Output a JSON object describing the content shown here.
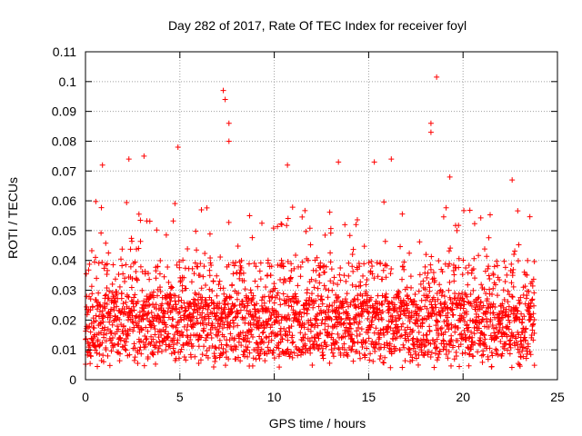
{
  "chart_data": {
    "type": "scatter",
    "title": "Day 282 of 2017, Rate Of TEC Index for receiver foyl",
    "xlabel": "GPS time / hours",
    "ylabel": "ROTI / TECUs",
    "xlim": [
      0,
      25
    ],
    "ylim": [
      0,
      0.11
    ],
    "xticks": [
      0,
      5,
      10,
      15,
      20,
      25
    ],
    "xtick_labels": [
      "0",
      "5",
      "10",
      "15",
      "20",
      "25"
    ],
    "yticks": [
      0,
      0.01,
      0.02,
      0.03,
      0.04,
      0.05,
      0.06,
      0.07,
      0.08,
      0.09,
      0.1,
      0.11
    ],
    "ytick_labels": [
      "0",
      "0.01",
      "0.02",
      "0.03",
      "0.04",
      "0.05",
      "0.06",
      "0.07",
      "0.08",
      "0.09",
      "0.1",
      "0.11"
    ],
    "grid": true,
    "marker": "+",
    "color": "#ff0000",
    "series": [
      {
        "name": "ROTI",
        "x_range": [
          0,
          23.8
        ],
        "baseline_range": [
          0.008,
          0.028
        ],
        "notable_points": [
          {
            "x": 7.3,
            "y": 0.097
          },
          {
            "x": 7.4,
            "y": 0.094
          },
          {
            "x": 7.6,
            "y": 0.086
          },
          {
            "x": 7.6,
            "y": 0.08
          },
          {
            "x": 18.3,
            "y": 0.086
          },
          {
            "x": 18.3,
            "y": 0.083
          },
          {
            "x": 18.6,
            "y": 0.1015
          },
          {
            "x": 4.9,
            "y": 0.078
          },
          {
            "x": 2.3,
            "y": 0.074
          },
          {
            "x": 3.1,
            "y": 0.075
          },
          {
            "x": 13.4,
            "y": 0.073
          },
          {
            "x": 16.2,
            "y": 0.074
          },
          {
            "x": 15.3,
            "y": 0.073
          },
          {
            "x": 0.9,
            "y": 0.072
          },
          {
            "x": 10.7,
            "y": 0.072
          },
          {
            "x": 22.6,
            "y": 0.067
          },
          {
            "x": 19.3,
            "y": 0.068
          }
        ]
      }
    ]
  }
}
